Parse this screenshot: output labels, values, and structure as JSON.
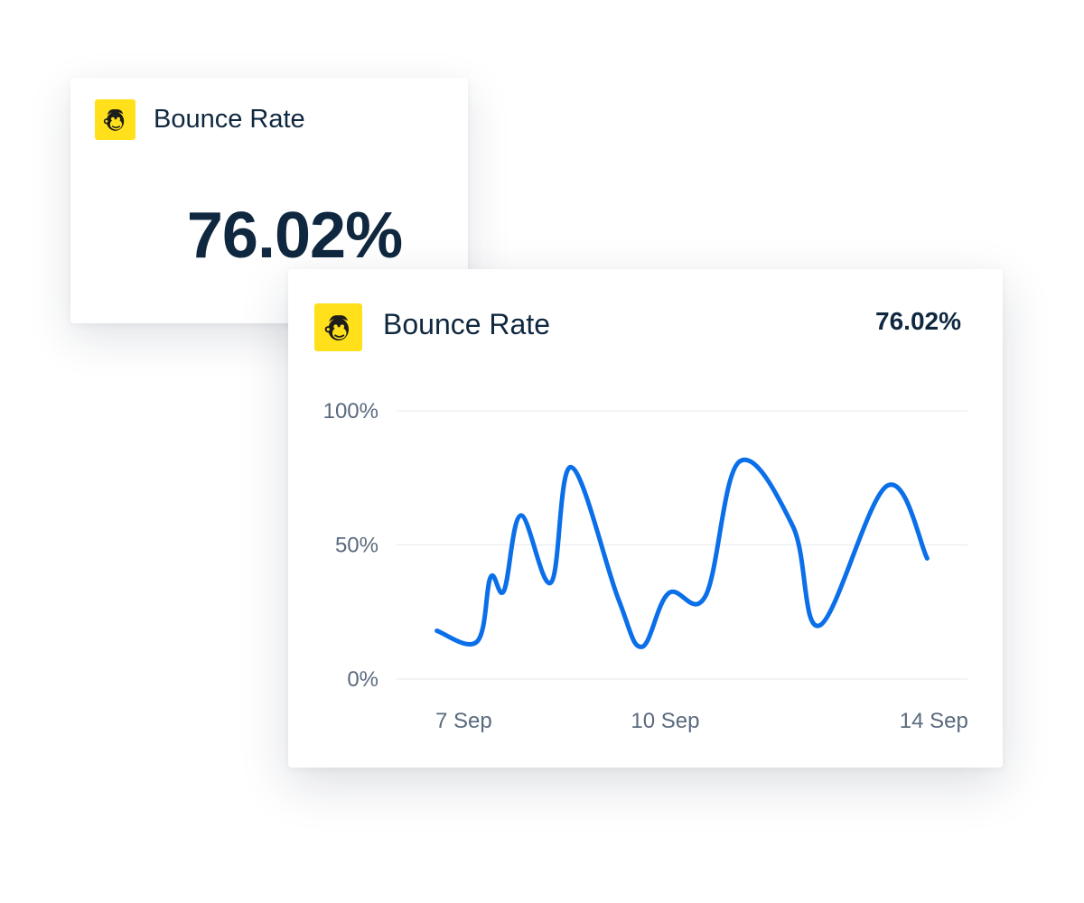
{
  "small_card": {
    "title": "Bounce Rate",
    "value": "76.02%",
    "icon": "mailchimp-icon"
  },
  "large_card": {
    "title": "Bounce Rate",
    "value": "76.02%",
    "icon": "mailchimp-icon"
  },
  "colors": {
    "line": "#0a6fe8",
    "logo_bg": "#ffe01b",
    "text": "#0f2840",
    "grid": "#e6e9ee",
    "tick": "#5a6a7d"
  },
  "chart_data": {
    "type": "line",
    "title": "",
    "xlabel": "",
    "ylabel": "",
    "ylim": [
      0,
      100
    ],
    "y_ticks": [
      {
        "value": 0,
        "label": "0%"
      },
      {
        "value": 50,
        "label": "50%"
      },
      {
        "value": 100,
        "label": "100%"
      }
    ],
    "x_ticks": [
      {
        "value": 7,
        "label": "7 Sep"
      },
      {
        "value": 10,
        "label": "10 Sep"
      },
      {
        "value": 14,
        "label": "14 Sep"
      }
    ],
    "grid": true,
    "series": [
      {
        "values": [
          {
            "x": 6.6,
            "y": 18
          },
          {
            "x": 7.2,
            "y": 14
          },
          {
            "x": 7.4,
            "y": 38
          },
          {
            "x": 7.6,
            "y": 33
          },
          {
            "x": 7.85,
            "y": 61
          },
          {
            "x": 8.3,
            "y": 36
          },
          {
            "x": 8.6,
            "y": 79
          },
          {
            "x": 9.3,
            "y": 30
          },
          {
            "x": 9.65,
            "y": 12
          },
          {
            "x": 10.05,
            "y": 32
          },
          {
            "x": 10.6,
            "y": 31
          },
          {
            "x": 11.1,
            "y": 81
          },
          {
            "x": 11.9,
            "y": 57
          },
          {
            "x": 12.3,
            "y": 20
          },
          {
            "x": 13.3,
            "y": 72
          },
          {
            "x": 13.9,
            "y": 45
          }
        ]
      }
    ]
  }
}
